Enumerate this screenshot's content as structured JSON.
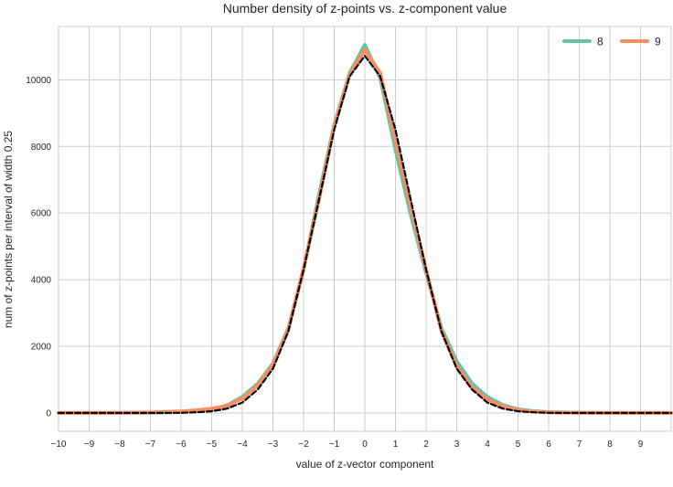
{
  "chart_data": {
    "type": "line",
    "title": "Number density of z-points vs. z-component value",
    "xlabel": "value of z-vector component",
    "ylabel": "num of z-points per interval of width 0.25",
    "xlim": [
      -10,
      10
    ],
    "ylim": [
      -550,
      11600
    ],
    "grid": true,
    "legend_position": "top-right",
    "x_ticks": [
      -10,
      -9,
      -8,
      -7,
      -6,
      -5,
      -4,
      -3,
      -2,
      -1,
      0,
      1,
      2,
      3,
      4,
      5,
      6,
      7,
      8,
      9
    ],
    "x_tick_labels": [
      "−10",
      "−9",
      "−8",
      "−7",
      "−6",
      "−5",
      "−4",
      "−3",
      "−2",
      "−1",
      "0",
      "1",
      "2",
      "3",
      "4",
      "5",
      "6",
      "7",
      "8",
      "9"
    ],
    "y_ticks": [
      0,
      2000,
      4000,
      6000,
      8000,
      10000
    ],
    "y_tick_labels": [
      "0",
      "2000",
      "4000",
      "6000",
      "8000",
      "10000"
    ],
    "x": [
      -10,
      -9,
      -8,
      -7,
      -6,
      -5.5,
      -5,
      -4.5,
      -4,
      -3.5,
      -3,
      -2.5,
      -2,
      -1.5,
      -1,
      -0.5,
      0,
      0.5,
      1,
      1.5,
      2,
      2.5,
      3,
      3.5,
      4,
      4.5,
      5,
      5.5,
      6,
      7,
      8,
      9,
      10
    ],
    "series": [
      {
        "name": "8",
        "color": "#66c2a5",
        "in_legend": true,
        "style": "solid",
        "values": [
          0,
          0,
          2,
          6,
          30,
          60,
          110,
          230,
          480,
          880,
          1480,
          2550,
          4300,
          6550,
          8650,
          10200,
          11050,
          10050,
          7900,
          5950,
          4200,
          2550,
          1550,
          880,
          480,
          240,
          110,
          55,
          25,
          6,
          2,
          0,
          0
        ]
      },
      {
        "name": "9",
        "color": "#fc8d62",
        "in_legend": true,
        "style": "solid",
        "values": [
          0,
          2,
          5,
          15,
          45,
          80,
          130,
          220,
          430,
          820,
          1430,
          2500,
          4350,
          6400,
          8600,
          10150,
          10900,
          10200,
          8200,
          6200,
          4300,
          2450,
          1400,
          760,
          410,
          200,
          90,
          40,
          15,
          4,
          1,
          0,
          0
        ]
      },
      {
        "name": "",
        "color": "#000000",
        "in_legend": false,
        "style": "dashed",
        "values": [
          0,
          0,
          0,
          1,
          5,
          20,
          50,
          130,
          310,
          700,
          1330,
          2450,
          4300,
          6400,
          8500,
          10100,
          10720,
          10100,
          8500,
          6400,
          4300,
          2450,
          1330,
          700,
          310,
          130,
          50,
          20,
          5,
          1,
          0,
          0,
          0
        ]
      }
    ]
  }
}
